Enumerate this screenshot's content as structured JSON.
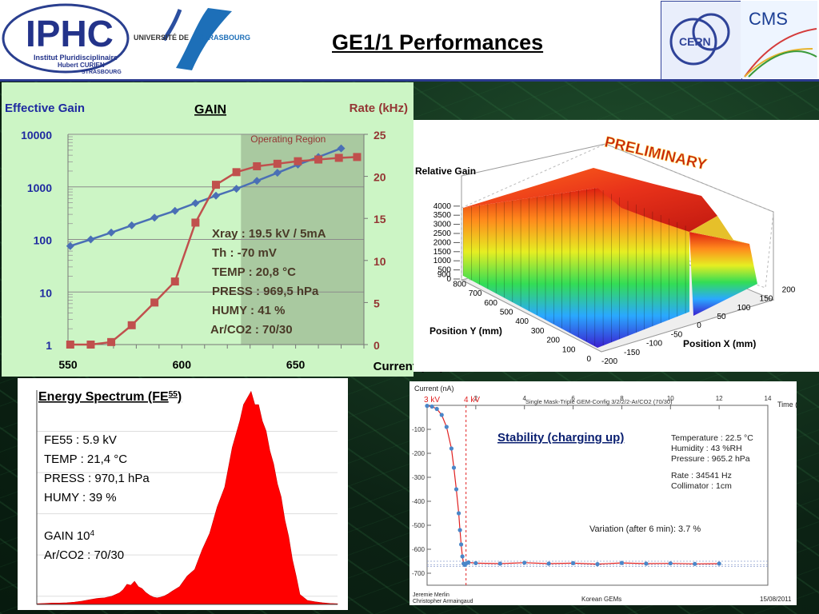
{
  "header": {
    "title": "GE1/1 Performances",
    "ipphc_logo_text": "IPHC",
    "ipphc_sub1": "Institut Pluridisciplinaire",
    "ipphc_sub2": "Hubert CURIEN",
    "ipphc_sub3": "STRASBOURG",
    "univ_logo_text_a": "UNIVERSITÉ DE ",
    "univ_logo_text_b": "STRASBOURG",
    "cern_logo_text": "CERN",
    "cms_logo_text": "CMS"
  },
  "colors": {
    "gain_series": "#4a6fb5",
    "rate_series": "#c0504d",
    "left_axis": "#1f2aa0",
    "right_axis": "#943634",
    "operating_region": "#a9c9a0",
    "spectrum_fill": "#ff0000",
    "stability_points": "#4a86c8",
    "stability_marker": "#e02020"
  },
  "chart_data": [
    {
      "type": "line",
      "title": "GAIN",
      "xlabel": "Current (uA)",
      "ylabel": "Effective Gain",
      "y2label": "Rate (kHz)",
      "x_ticks": [
        "550",
        "600",
        "650"
      ],
      "xlim": [
        550,
        680
      ],
      "y_scale": "log",
      "y_ticks": [
        "1",
        "10",
        "100",
        "1000",
        "10000"
      ],
      "ylim": [
        1,
        10000
      ],
      "y2_ticks": [
        "0",
        "5",
        "10",
        "15",
        "20",
        "25"
      ],
      "y2lim": [
        0,
        25
      ],
      "grid": true,
      "annotation_region": {
        "label": "Operating Region",
        "x_range": [
          626,
          680
        ]
      },
      "info_lines": [
        "Xray : 19.5 kV / 5mA",
        "Th : -70 mV",
        "TEMP : 20,8 °C",
        "PRESS : 969,5 hPa",
        "HUMY : 41 %",
        "Ar/CO2 : 70/30"
      ],
      "series": [
        {
          "axis": "left",
          "x": [
            551,
            560,
            569,
            578,
            588,
            597,
            606,
            615,
            624,
            633,
            642,
            651,
            660,
            670
          ],
          "y": [
            75,
            100,
            135,
            185,
            260,
            350,
            490,
            680,
            920,
            1300,
            1850,
            2650,
            3700,
            5400
          ]
        },
        {
          "axis": "right",
          "x": [
            551,
            560,
            569,
            578,
            588,
            597,
            606,
            615,
            624,
            633,
            642,
            651,
            660,
            669,
            677
          ],
          "y": [
            0,
            0,
            0.3,
            2.3,
            5.0,
            7.5,
            14.5,
            19.0,
            20.5,
            21.2,
            21.5,
            21.8,
            22.0,
            22.2,
            22.3
          ]
        }
      ]
    },
    {
      "type": "surface3d",
      "stamp": "PRELIMINARY",
      "zlabel": "Relative Gain",
      "ylabel": "Position Y (mm)",
      "xlabel": "Position X (mm)",
      "z_ticks": [
        "0",
        "500",
        "1000",
        "1500",
        "2000",
        "2500",
        "3000",
        "3500",
        "4000"
      ],
      "y_ticks": [
        "0",
        "100",
        "200",
        "300",
        "400",
        "500",
        "600",
        "700",
        "800",
        "900"
      ],
      "x_ticks": [
        "-200",
        "-150",
        "-100",
        "-50",
        "0",
        "50",
        "100",
        "150",
        "200"
      ]
    },
    {
      "type": "area",
      "title": "Energy Spectrum (FE",
      "title_sup": "55",
      "title_end": ")",
      "info_lines": [
        "FE55 : 5.9 kV",
        "TEMP : 21,4 °C",
        "PRESS : 970,1 hPa",
        "HUMY : 39 %"
      ],
      "gain_label": "GAIN 10",
      "gain_sup": "4",
      "gas_label": "Ar/CO2 : 70/30",
      "series": [
        {
          "name": "",
          "x": [
            0,
            10,
            20,
            30,
            40,
            50,
            60,
            70,
            80,
            90,
            100,
            110,
            115,
            120,
            125,
            130,
            135,
            140,
            145,
            150,
            155,
            160,
            165,
            170,
            175,
            180,
            190,
            200,
            210,
            220,
            230,
            240,
            250,
            260,
            270,
            275,
            280,
            285,
            290,
            295,
            300,
            305,
            310,
            315,
            320,
            325,
            330,
            335,
            340,
            345,
            350,
            360,
            370,
            380,
            390,
            400
          ],
          "y": [
            2,
            3,
            4,
            4,
            5,
            7,
            10,
            14,
            18,
            20,
            25,
            35,
            45,
            55,
            62,
            64,
            58,
            48,
            36,
            28,
            22,
            20,
            22,
            26,
            32,
            40,
            58,
            80,
            110,
            160,
            220,
            290,
            360,
            470,
            560,
            600,
            630,
            640,
            610,
            600,
            560,
            520,
            470,
            420,
            370,
            320,
            260,
            200,
            140,
            80,
            30,
            12,
            8,
            5,
            3,
            2
          ]
        }
      ]
    },
    {
      "type": "scatter",
      "title": "Single Mask-Triple GEM-Config 3/2/2/2-Ar/CO2 (70/30)",
      "annotation_title": "Stability (charging up)",
      "ylabel": "Current (nA)",
      "xlabel": "Time (min)",
      "x_ticks": [
        "2",
        "4",
        "6",
        "8",
        "10",
        "12",
        "14"
      ],
      "xlim": [
        0,
        14
      ],
      "y_ticks": [
        "-100",
        "-200",
        "-300",
        "-400",
        "-500",
        "-600",
        "-700"
      ],
      "ylim": [
        -750,
        0
      ],
      "markers": [
        "3 kV",
        "4 kV"
      ],
      "stats": [
        "Temperature : 22.5 °C",
        "Humidity : 43 %RH",
        "Pressure : 965.2 hPa",
        "Rate : 34541 Hz",
        "Collimator : 1cm"
      ],
      "variation": "Variation (after 6 min): 3.7 %",
      "footer_left1": "Jeremie Merlin",
      "footer_left2": "Christopher Armaingaud",
      "footer_mid": "Korean GEMs",
      "footer_right": "15/08/2011",
      "series": [
        {
          "name": "",
          "x": [
            0,
            0.2,
            0.4,
            0.6,
            0.8,
            1.0,
            1.1,
            1.2,
            1.3,
            1.35,
            1.4,
            1.45,
            1.5,
            1.55,
            1.6,
            1.7,
            2,
            3,
            4,
            5,
            6,
            7,
            8,
            9,
            10,
            11,
            12
          ],
          "y": [
            -2,
            -5,
            -15,
            -40,
            -90,
            -180,
            -260,
            -350,
            -450,
            -520,
            -580,
            -630,
            -660,
            -665,
            -660,
            -655,
            -658,
            -660,
            -656,
            -660,
            -658,
            -662,
            -657,
            -660,
            -659,
            -661,
            -660
          ]
        }
      ]
    }
  ]
}
